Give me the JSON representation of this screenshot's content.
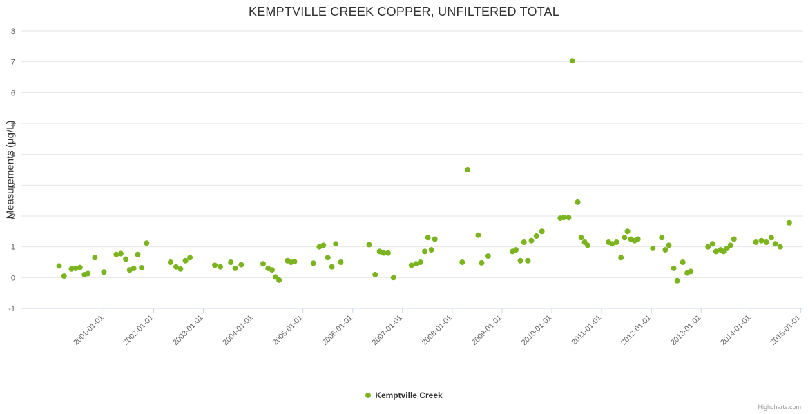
{
  "credits": "Highcharts.com",
  "colors": {
    "point": "#7bb41e",
    "grid": "#e6e6e6",
    "axis_line": "#ccd6eb",
    "tick_label": "#606060",
    "title": "#333333",
    "credits": "#999999"
  },
  "chart_data": {
    "type": "scatter",
    "title": "KEMPTVILLE CREEK COPPER, UNFILTERED TOTAL",
    "xlabel": "",
    "ylabel": "Measurements (µg/L)",
    "ylim": [
      -1,
      8
    ],
    "xlim": [
      1999.33,
      2015.05
    ],
    "grid": "horizontal",
    "legend_position": "bottom-center",
    "y_ticks": [
      -1,
      0,
      1,
      2,
      3,
      4,
      5,
      6,
      7,
      8
    ],
    "x_ticks": [
      {
        "value": 2001,
        "label": "2001-01-01"
      },
      {
        "value": 2002,
        "label": "2002-01-01"
      },
      {
        "value": 2003,
        "label": "2003-01-01"
      },
      {
        "value": 2004,
        "label": "2004-01-01"
      },
      {
        "value": 2005,
        "label": "2005-01-01"
      },
      {
        "value": 2006,
        "label": "2006-01-01"
      },
      {
        "value": 2007,
        "label": "2007-01-01"
      },
      {
        "value": 2008,
        "label": "2008-01-01"
      },
      {
        "value": 2009,
        "label": "2009-01-01"
      },
      {
        "value": 2010,
        "label": "2010-01-01"
      },
      {
        "value": 2011,
        "label": "2011-01-01"
      },
      {
        "value": 2012,
        "label": "2012-01-01"
      },
      {
        "value": 2013,
        "label": "2013-01-01"
      },
      {
        "value": 2014,
        "label": "2014-01-01"
      },
      {
        "value": 2015,
        "label": "2015-01-01"
      }
    ],
    "series": [
      {
        "name": "Kemptville Creek",
        "color": "#7bb41e",
        "points": [
          [
            2000.1,
            0.38
          ],
          [
            2000.2,
            0.05
          ],
          [
            2000.35,
            0.28
          ],
          [
            2000.43,
            0.3
          ],
          [
            2000.52,
            0.33
          ],
          [
            2000.61,
            0.1
          ],
          [
            2000.68,
            0.13
          ],
          [
            2000.82,
            0.65
          ],
          [
            2001.0,
            0.18
          ],
          [
            2001.25,
            0.75
          ],
          [
            2001.34,
            0.78
          ],
          [
            2001.44,
            0.6
          ],
          [
            2001.52,
            0.25
          ],
          [
            2001.6,
            0.3
          ],
          [
            2001.68,
            0.75
          ],
          [
            2001.76,
            0.32
          ],
          [
            2001.86,
            1.12
          ],
          [
            2002.34,
            0.5
          ],
          [
            2002.45,
            0.35
          ],
          [
            2002.54,
            0.28
          ],
          [
            2002.64,
            0.55
          ],
          [
            2002.73,
            0.65
          ],
          [
            2003.23,
            0.4
          ],
          [
            2003.34,
            0.35
          ],
          [
            2003.55,
            0.5
          ],
          [
            2003.64,
            0.3
          ],
          [
            2003.76,
            0.42
          ],
          [
            2004.2,
            0.45
          ],
          [
            2004.3,
            0.3
          ],
          [
            2004.38,
            0.25
          ],
          [
            2004.45,
            0.02
          ],
          [
            2004.52,
            -0.08
          ],
          [
            2004.69,
            0.55
          ],
          [
            2004.76,
            0.5
          ],
          [
            2004.83,
            0.52
          ],
          [
            2005.21,
            0.47
          ],
          [
            2005.33,
            1.0
          ],
          [
            2005.41,
            1.05
          ],
          [
            2005.5,
            0.65
          ],
          [
            2005.58,
            0.35
          ],
          [
            2005.66,
            1.1
          ],
          [
            2005.76,
            0.5
          ],
          [
            2006.33,
            1.07
          ],
          [
            2006.45,
            0.1
          ],
          [
            2006.54,
            0.85
          ],
          [
            2006.62,
            0.8
          ],
          [
            2006.71,
            0.8
          ],
          [
            2006.82,
            0.0
          ],
          [
            2007.18,
            0.4
          ],
          [
            2007.27,
            0.45
          ],
          [
            2007.36,
            0.5
          ],
          [
            2007.45,
            0.85
          ],
          [
            2007.51,
            1.3
          ],
          [
            2007.58,
            0.9
          ],
          [
            2007.65,
            1.25
          ],
          [
            2008.2,
            0.5
          ],
          [
            2008.31,
            3.5
          ],
          [
            2008.52,
            1.38
          ],
          [
            2008.59,
            0.48
          ],
          [
            2008.72,
            0.7
          ],
          [
            2009.21,
            0.85
          ],
          [
            2009.28,
            0.9
          ],
          [
            2009.37,
            0.55
          ],
          [
            2009.44,
            1.15
          ],
          [
            2009.52,
            0.55
          ],
          [
            2009.59,
            1.2
          ],
          [
            2009.69,
            1.35
          ],
          [
            2009.8,
            1.5
          ],
          [
            2010.17,
            1.93
          ],
          [
            2010.24,
            1.95
          ],
          [
            2010.34,
            1.95
          ],
          [
            2010.41,
            7.03
          ],
          [
            2010.52,
            2.45
          ],
          [
            2010.59,
            1.3
          ],
          [
            2010.66,
            1.15
          ],
          [
            2010.72,
            1.05
          ],
          [
            2011.14,
            1.15
          ],
          [
            2011.21,
            1.1
          ],
          [
            2011.3,
            1.15
          ],
          [
            2011.39,
            0.65
          ],
          [
            2011.46,
            1.3
          ],
          [
            2011.52,
            1.5
          ],
          [
            2011.59,
            1.25
          ],
          [
            2011.66,
            1.2
          ],
          [
            2011.73,
            1.25
          ],
          [
            2012.03,
            0.95
          ],
          [
            2012.21,
            1.3
          ],
          [
            2012.28,
            0.9
          ],
          [
            2012.35,
            1.05
          ],
          [
            2012.45,
            0.3
          ],
          [
            2012.52,
            -0.1
          ],
          [
            2012.63,
            0.5
          ],
          [
            2012.72,
            0.15
          ],
          [
            2012.79,
            0.2
          ],
          [
            2013.14,
            1.0
          ],
          [
            2013.23,
            1.1
          ],
          [
            2013.3,
            0.85
          ],
          [
            2013.39,
            0.9
          ],
          [
            2013.45,
            0.85
          ],
          [
            2013.52,
            0.95
          ],
          [
            2013.59,
            1.05
          ],
          [
            2013.66,
            1.25
          ],
          [
            2014.1,
            1.15
          ],
          [
            2014.21,
            1.2
          ],
          [
            2014.31,
            1.15
          ],
          [
            2014.41,
            1.3
          ],
          [
            2014.49,
            1.1
          ],
          [
            2014.59,
            1.0
          ],
          [
            2014.77,
            1.78
          ]
        ]
      }
    ]
  }
}
